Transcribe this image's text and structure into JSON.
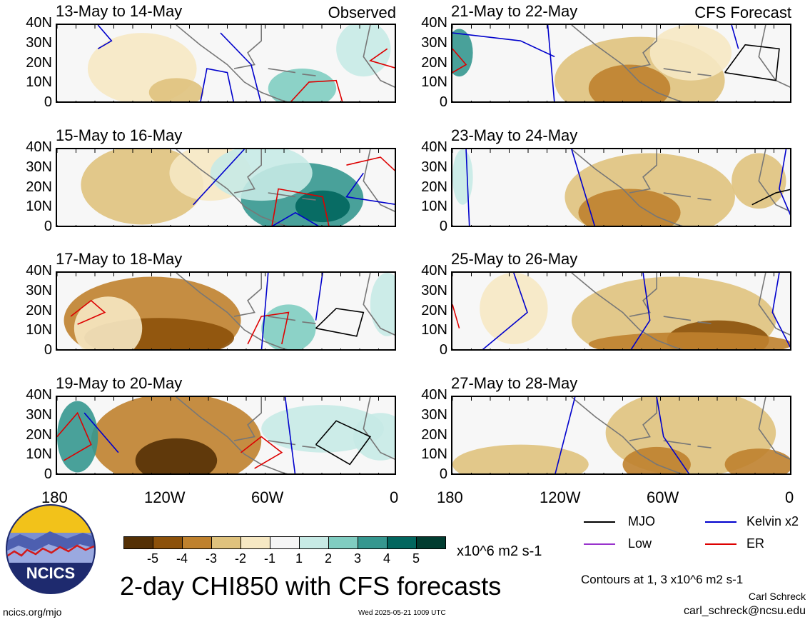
{
  "panels": [
    {
      "title": "13-May to 14-May",
      "tag": "Observed",
      "col": 0,
      "row": 0
    },
    {
      "title": "15-May to 16-May",
      "tag": "",
      "col": 0,
      "row": 1
    },
    {
      "title": "17-May to 18-May",
      "tag": "",
      "col": 0,
      "row": 2
    },
    {
      "title": "19-May to 20-May",
      "tag": "",
      "col": 0,
      "row": 3
    },
    {
      "title": "21-May to 22-May",
      "tag": "CFS Forecast",
      "col": 1,
      "row": 0
    },
    {
      "title": "23-May to 24-May",
      "tag": "",
      "col": 1,
      "row": 1
    },
    {
      "title": "25-May to 26-May",
      "tag": "",
      "col": 1,
      "row": 2
    },
    {
      "title": "27-May to 28-May",
      "tag": "",
      "col": 1,
      "row": 3
    }
  ],
  "lat_ticks": [
    "40N",
    "30N",
    "20N",
    "10N",
    "0"
  ],
  "lon_ticks": [
    "180",
    "120W",
    "60W",
    "0"
  ],
  "colorbar": {
    "colors": [
      "#543005",
      "#8c510a",
      "#bf812d",
      "#dfc27d",
      "#f6e8c3",
      "#f5f5f5",
      "#c7eae5",
      "#80cdc1",
      "#35978f",
      "#01665e",
      "#003c30"
    ],
    "labels": [
      "-5",
      "-4",
      "-3",
      "-2",
      "-1",
      "1",
      "2",
      "3",
      "4",
      "5"
    ],
    "units": "x10^6 m2 s-1"
  },
  "legend": [
    {
      "label": "MJO",
      "color": "#000000"
    },
    {
      "label": "Kelvin x2",
      "color": "#0000cc"
    },
    {
      "label": "Low",
      "color": "#9933cc"
    },
    {
      "label": "ER",
      "color": "#dd0000"
    }
  ],
  "title": "2-day CHI850 with CFS forecasts",
  "contours_note": "Contours at 1, 3 x10^6 m2 s-1",
  "author": "Carl Schreck",
  "email": "carl_schreck@ncsu.edu",
  "site": "ncics.org/mjo",
  "timestamp": "Wed 2025-05-21 1009 UTC",
  "logo": {
    "text": "NCICS"
  }
}
